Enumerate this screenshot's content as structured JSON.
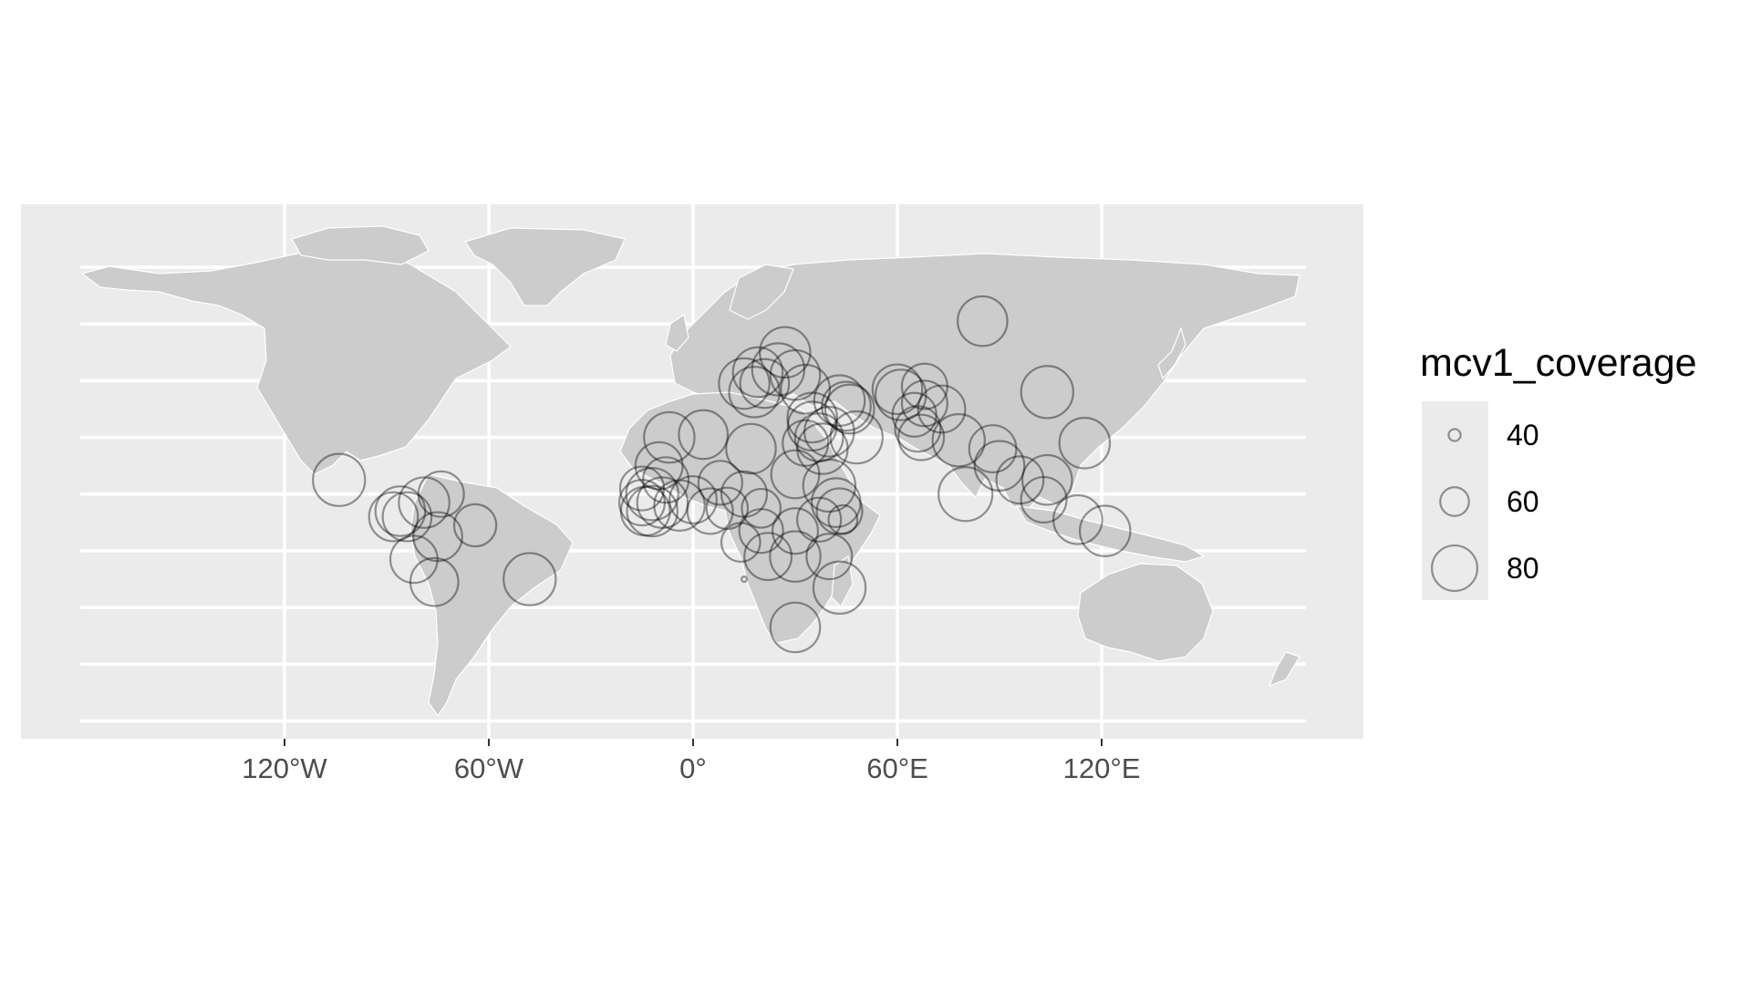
{
  "chart_data": {
    "type": "scatter",
    "subtype": "proportional-symbol map (equirectangular world map)",
    "x_axis": {
      "label": "",
      "ticks": [
        "120°W",
        "60°W",
        "0°",
        "60°E",
        "120°E"
      ],
      "tick_values": [
        -120,
        -60,
        0,
        60,
        120
      ],
      "range": [
        -180,
        180
      ]
    },
    "y_axis": {
      "label": "",
      "tick_values": [
        -80,
        -60,
        -40,
        -20,
        0,
        20,
        40,
        60,
        80
      ],
      "tick_labels_shown": false,
      "range": [
        -85,
        85
      ]
    },
    "grid": true,
    "legend": {
      "title": "mcv1_coverage",
      "placement": "right",
      "items": [
        {
          "label": "40",
          "value": 40
        },
        {
          "label": "60",
          "value": 60
        },
        {
          "label": "80",
          "value": 80
        }
      ]
    },
    "points": [
      {
        "lon": 85,
        "lat": 61,
        "value": 85
      },
      {
        "lon": 104,
        "lat": 36,
        "value": 88
      },
      {
        "lon": 115,
        "lat": 18,
        "value": 86
      },
      {
        "lon": 61,
        "lat": 35,
        "value": 86
      },
      {
        "lon": 68,
        "lat": 32,
        "value": 80
      },
      {
        "lon": 73,
        "lat": 30,
        "value": 82
      },
      {
        "lon": 66,
        "lat": 23,
        "value": 80
      },
      {
        "lon": 78,
        "lat": 19,
        "value": 88
      },
      {
        "lon": 80,
        "lat": 0,
        "value": 90
      },
      {
        "lon": 88,
        "lat": 16,
        "value": 82
      },
      {
        "lon": 90,
        "lat": 10,
        "value": 85
      },
      {
        "lon": 96,
        "lat": 5,
        "value": 82
      },
      {
        "lon": 104,
        "lat": 5,
        "value": 85
      },
      {
        "lon": 103,
        "lat": -2,
        "value": 80
      },
      {
        "lon": 113,
        "lat": -9,
        "value": 84
      },
      {
        "lon": 121,
        "lat": -13,
        "value": 86
      },
      {
        "lon": 43,
        "lat": 33,
        "value": 86
      },
      {
        "lon": 46,
        "lat": 30,
        "value": 84
      },
      {
        "lon": 48,
        "lat": 20,
        "value": 88
      },
      {
        "lon": 40,
        "lat": 22,
        "value": 85
      },
      {
        "lon": 35,
        "lat": 24,
        "value": 84
      },
      {
        "lon": 38,
        "lat": 16,
        "value": 86
      },
      {
        "lon": 33,
        "lat": 18,
        "value": 80
      },
      {
        "lon": 30,
        "lat": 7,
        "value": 83
      },
      {
        "lon": 40,
        "lat": 3,
        "value": 88
      },
      {
        "lon": 42,
        "lat": -3,
        "value": 84
      },
      {
        "lon": 43,
        "lat": -6,
        "value": 80
      },
      {
        "lon": 44,
        "lat": -9,
        "value": 60
      },
      {
        "lon": 37,
        "lat": -9,
        "value": 78
      },
      {
        "lon": 30,
        "lat": -13,
        "value": 80
      },
      {
        "lon": 30,
        "lat": -22,
        "value": 86
      },
      {
        "lon": 40,
        "lat": -22,
        "value": 80
      },
      {
        "lon": 43,
        "lat": -33,
        "value": 88
      },
      {
        "lon": 30,
        "lat": -47,
        "value": 85
      },
      {
        "lon": 22,
        "lat": -22,
        "value": 82
      },
      {
        "lon": 20,
        "lat": -13,
        "value": 78
      },
      {
        "lon": 20,
        "lat": -5,
        "value": 72
      },
      {
        "lon": 15,
        "lat": -30,
        "value": 32
      },
      {
        "lon": 14,
        "lat": -17,
        "value": 72
      },
      {
        "lon": 10,
        "lat": -5,
        "value": 75
      },
      {
        "lon": 5,
        "lat": -6,
        "value": 80
      },
      {
        "lon": 0,
        "lat": -2,
        "value": 82
      },
      {
        "lon": -4,
        "lat": -4,
        "value": 86
      },
      {
        "lon": -9,
        "lat": -3,
        "value": 86
      },
      {
        "lon": -12,
        "lat": 0,
        "value": 88
      },
      {
        "lon": -12,
        "lat": -6,
        "value": 86
      },
      {
        "lon": -15,
        "lat": -3,
        "value": 80
      },
      {
        "lon": -14,
        "lat": -6,
        "value": 84
      },
      {
        "lon": -15,
        "lat": 2,
        "value": 78
      },
      {
        "lon": -10,
        "lat": 10,
        "value": 82
      },
      {
        "lon": -8,
        "lat": 5,
        "value": 80
      },
      {
        "lon": -7,
        "lat": 20,
        "value": 86
      },
      {
        "lon": 3,
        "lat": 21,
        "value": 84
      },
      {
        "lon": 8,
        "lat": 4,
        "value": 78
      },
      {
        "lon": 15,
        "lat": 0,
        "value": 80
      },
      {
        "lon": 17,
        "lat": 16,
        "value": 85
      },
      {
        "lon": 15,
        "lat": 39,
        "value": 86
      },
      {
        "lon": 19,
        "lat": 43,
        "value": 85
      },
      {
        "lon": 21,
        "lat": 39,
        "value": 84
      },
      {
        "lon": 18,
        "lat": 36,
        "value": 86
      },
      {
        "lon": 25,
        "lat": 44,
        "value": 88
      },
      {
        "lon": 27,
        "lat": 50,
        "value": 86
      },
      {
        "lon": 30,
        "lat": 42,
        "value": 85
      },
      {
        "lon": 33,
        "lat": 37,
        "value": 84
      },
      {
        "lon": 35,
        "lat": 27,
        "value": 85
      },
      {
        "lon": 37,
        "lat": 20,
        "value": 83
      },
      {
        "lon": 45,
        "lat": 31,
        "value": 84
      },
      {
        "lon": 60,
        "lat": 37,
        "value": 85
      },
      {
        "lon": 68,
        "lat": 38,
        "value": 80
      },
      {
        "lon": 65,
        "lat": 28,
        "value": 78
      },
      {
        "lon": 67,
        "lat": 20,
        "value": 80
      },
      {
        "lon": -104,
        "lat": 5,
        "value": 88
      },
      {
        "lon": -88,
        "lat": -8,
        "value": 84
      },
      {
        "lon": -86,
        "lat": -6,
        "value": 85
      },
      {
        "lon": -84,
        "lat": -8,
        "value": 84
      },
      {
        "lon": -79,
        "lat": -3,
        "value": 86
      },
      {
        "lon": -74,
        "lat": 0,
        "value": 80
      },
      {
        "lon": -64,
        "lat": -11,
        "value": 76
      },
      {
        "lon": -75,
        "lat": -15,
        "value": 84
      },
      {
        "lon": -82,
        "lat": -23,
        "value": 82
      },
      {
        "lon": -76,
        "lat": -31,
        "value": 83
      },
      {
        "lon": -48,
        "lat": -30,
        "value": 88
      }
    ],
    "colors": {
      "panel": "#ebebeb",
      "grid": "#ffffff",
      "land": "#cccccc",
      "border": "#ffffff",
      "circle_stroke": "#000000"
    }
  }
}
